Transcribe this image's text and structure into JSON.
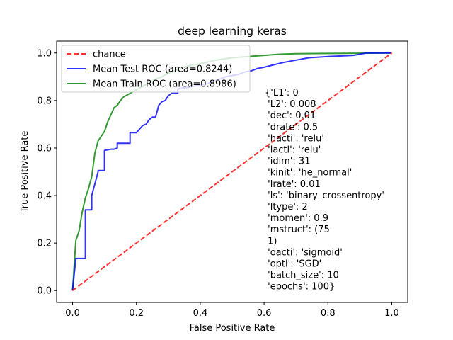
{
  "chart_data": {
    "type": "line",
    "title": "deep learning keras",
    "xlabel": "False Positive Rate",
    "ylabel": "True Positive Rate",
    "xlim": [
      -0.05,
      1.05
    ],
    "ylim": [
      -0.05,
      1.05
    ],
    "ticks": {
      "x": [
        "0.0",
        "0.2",
        "0.4",
        "0.6",
        "0.8",
        "1.0"
      ],
      "y": [
        "0.0",
        "0.2",
        "0.4",
        "0.6",
        "0.8",
        "1.0"
      ]
    },
    "grid": false,
    "legend_position": "upper-left",
    "series": [
      {
        "name": "chance",
        "color": "#ff0000",
        "style": "dashed",
        "x": [
          0,
          1
        ],
        "y": [
          0,
          1
        ]
      },
      {
        "name": "Mean Test ROC (area=0.8244)",
        "color": "#0000ff",
        "style": "solid",
        "x": [
          0,
          0.01,
          0.04,
          0.04,
          0.06,
          0.06,
          0.08,
          0.08,
          0.1,
          0.1,
          0.12,
          0.13,
          0.14,
          0.14,
          0.17,
          0.18,
          0.18,
          0.2,
          0.21,
          0.22,
          0.23,
          0.24,
          0.25,
          0.26,
          0.27,
          0.28,
          0.29,
          0.3,
          0.31,
          0.33,
          0.33,
          0.36,
          0.38,
          0.4,
          0.42,
          0.44,
          0.46,
          0.48,
          0.5,
          0.52,
          0.54,
          0.56,
          0.58,
          0.6,
          0.63,
          0.66,
          0.7,
          0.74,
          0.8,
          0.88,
          0.92,
          0.96,
          1.0
        ],
        "y": [
          0,
          0.135,
          0.135,
          0.34,
          0.34,
          0.4,
          0.5,
          0.505,
          0.505,
          0.59,
          0.595,
          0.595,
          0.6,
          0.62,
          0.62,
          0.62,
          0.665,
          0.665,
          0.68,
          0.695,
          0.7,
          0.72,
          0.73,
          0.73,
          0.78,
          0.795,
          0.8,
          0.82,
          0.83,
          0.83,
          0.85,
          0.855,
          0.86,
          0.865,
          0.87,
          0.88,
          0.89,
          0.9,
          0.905,
          0.91,
          0.92,
          0.925,
          0.935,
          0.94,
          0.95,
          0.96,
          0.97,
          0.98,
          0.985,
          0.99,
          1.0,
          1.0,
          1.0
        ]
      },
      {
        "name": "Mean Train ROC (area=0.8986)",
        "color": "#008000",
        "style": "solid",
        "x": [
          0,
          0.01,
          0.02,
          0.03,
          0.04,
          0.05,
          0.06,
          0.07,
          0.08,
          0.09,
          0.1,
          0.11,
          0.12,
          0.13,
          0.14,
          0.15,
          0.16,
          0.18,
          0.2,
          0.22,
          0.24,
          0.26,
          0.28,
          0.3,
          0.33,
          0.36,
          0.4,
          0.45,
          0.5,
          0.55,
          0.6,
          0.65,
          0.7,
          0.8,
          0.9,
          1.0
        ],
        "y": [
          0,
          0.21,
          0.25,
          0.33,
          0.39,
          0.43,
          0.48,
          0.58,
          0.63,
          0.65,
          0.67,
          0.71,
          0.74,
          0.77,
          0.78,
          0.8,
          0.815,
          0.83,
          0.845,
          0.86,
          0.875,
          0.89,
          0.9,
          0.915,
          0.93,
          0.945,
          0.955,
          0.97,
          0.98,
          0.985,
          0.99,
          0.995,
          0.997,
          0.998,
          0.999,
          1.0
        ]
      }
    ],
    "annotation": [
      "{'L1': 0",
      " 'L2': 0.008",
      " 'dec': 0.01",
      " 'drate': 0.5",
      " 'hacti': 'relu'",
      " 'iacti': 'relu'",
      " 'idim': 31",
      " 'kinit': 'he_normal'",
      " 'lrate': 0.01",
      " 'ls': 'binary_crossentropy'",
      " 'ltype': 2",
      " 'momen': 0.9",
      " 'mstruct': (75",
      " 1)",
      " 'oacti': 'sigmoid'",
      " 'opti': 'SGD'",
      " 'batch_size': 10",
      " 'epochs': 100}"
    ]
  }
}
